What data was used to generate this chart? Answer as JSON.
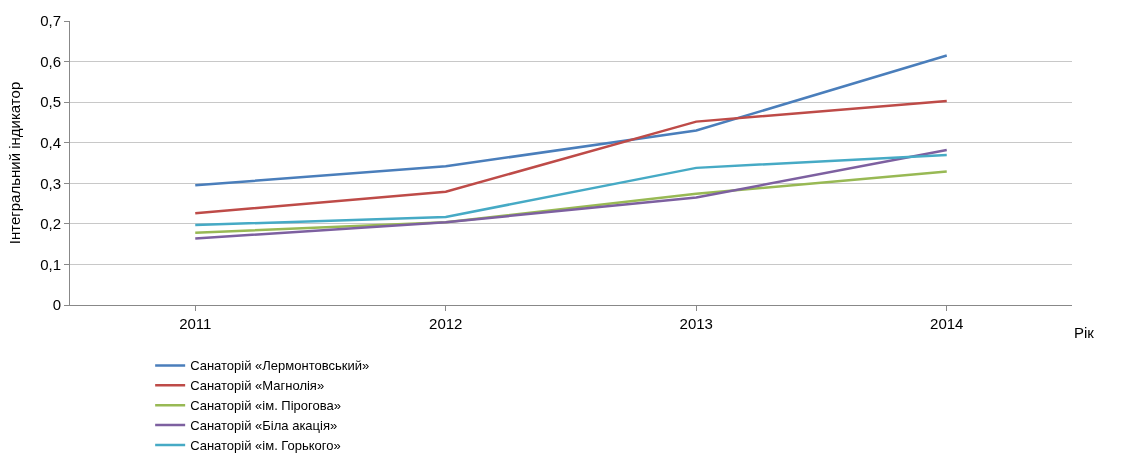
{
  "chart_data": {
    "type": "line",
    "xlabel": "Рік",
    "ylabel": "Інтегральний індикатор",
    "categories": [
      "2011",
      "2012",
      "2013",
      "2014"
    ],
    "series": [
      {
        "name": "Санаторій «Лермонтовський»",
        "color": "#4a7ebb",
        "values": [
          0.295,
          0.342,
          0.43,
          0.615
        ]
      },
      {
        "name": "Санаторій «Магнолія»",
        "color": "#be4b48",
        "values": [
          0.226,
          0.279,
          0.452,
          0.503
        ]
      },
      {
        "name": "Санаторій «ім. Пірогова»",
        "color": "#98b954",
        "values": [
          0.178,
          0.204,
          0.274,
          0.329
        ]
      },
      {
        "name": "Санаторій «Біла акація»",
        "color": "#7d60a0",
        "values": [
          0.164,
          0.204,
          0.265,
          0.382
        ]
      },
      {
        "name": "Санаторій «ім. Горького»",
        "color": "#46aac5",
        "values": [
          0.197,
          0.217,
          0.338,
          0.37
        ]
      }
    ],
    "ylim": [
      0,
      0.7
    ],
    "yticks": [
      0,
      {
        "value": 0.1,
        "label": "0,1"
      },
      {
        "value": 0.2,
        "label": "0,2"
      },
      {
        "value": 0.3,
        "label": "0,3"
      },
      {
        "value": 0.4,
        "label": "0,4"
      },
      {
        "value": 0.5,
        "label": "0,5"
      },
      {
        "value": 0.6,
        "label": "0,6"
      },
      {
        "value": 0.7,
        "label": "0,7"
      }
    ],
    "grid": "y",
    "legend": "bottom",
    "marker": "none",
    "line_style": "solid"
  }
}
